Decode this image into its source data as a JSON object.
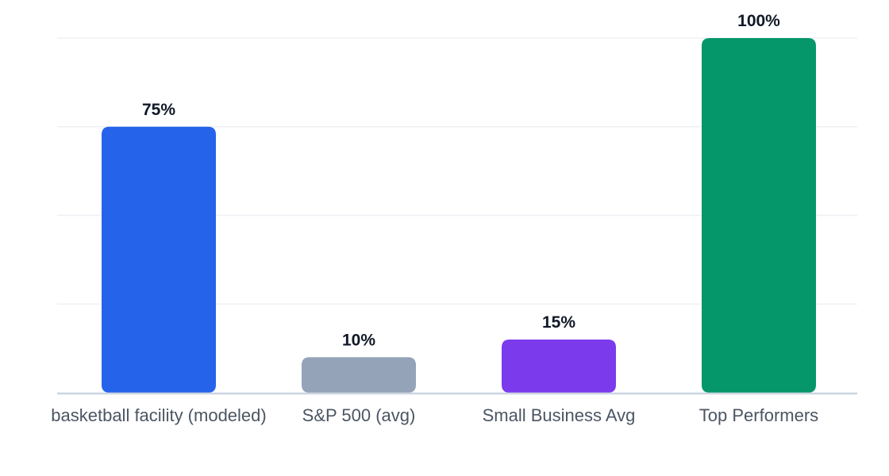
{
  "chart_data": {
    "type": "bar",
    "categories": [
      "basketball facility (modeled)",
      "S&P 500 (avg)",
      "Small Business Avg",
      "Top Performers"
    ],
    "values": [
      75,
      10,
      15,
      100
    ],
    "value_labels": [
      "75%",
      "10%",
      "15%",
      "100%"
    ],
    "colors": [
      "#2563eb",
      "#94a3b8",
      "#7c3aed",
      "#059669"
    ],
    "ylim": [
      0,
      100
    ],
    "grid": true,
    "legend": "none",
    "title": "",
    "xlabel": "",
    "ylabel": ""
  }
}
